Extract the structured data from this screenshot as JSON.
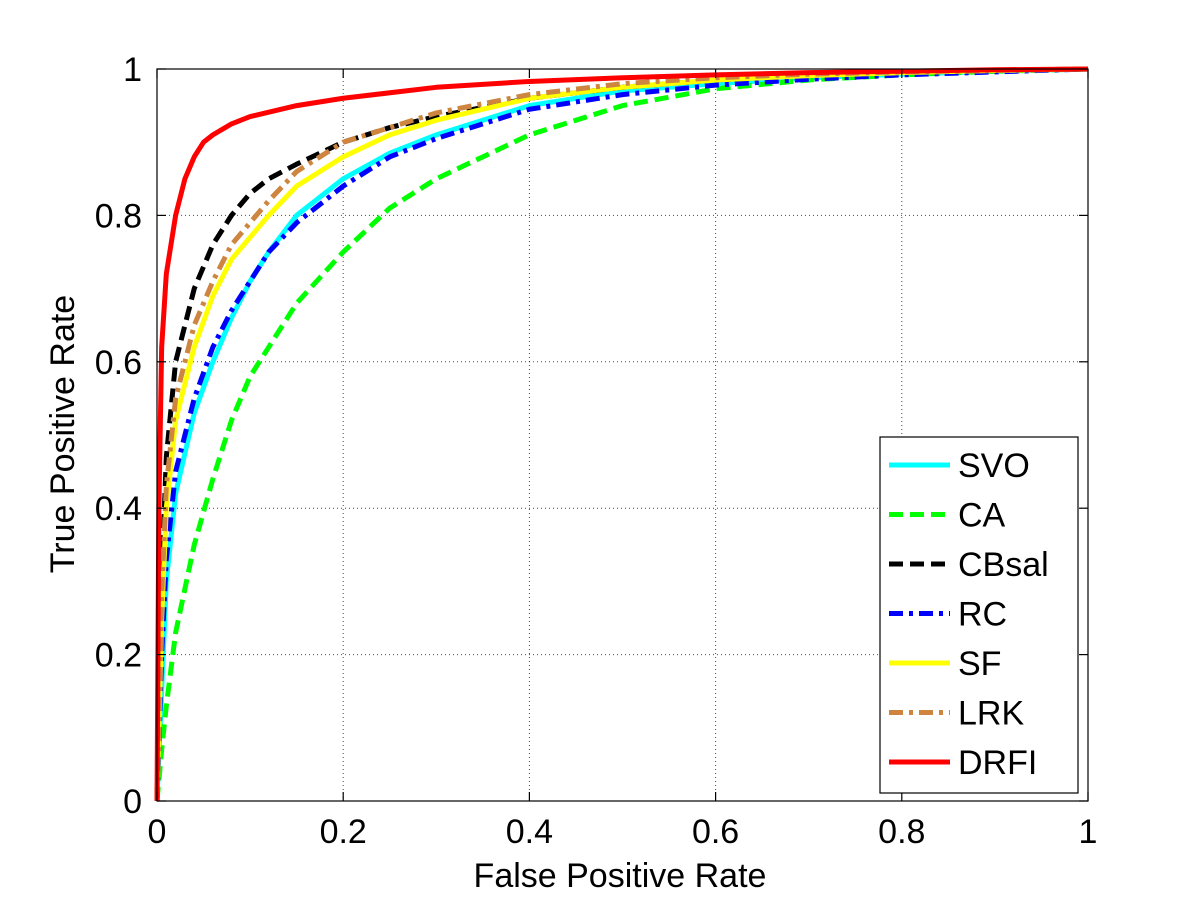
{
  "chart_data": {
    "type": "line",
    "title": "",
    "xlabel": "False Positive Rate",
    "ylabel": "True Positive Rate",
    "xlim": [
      0,
      1
    ],
    "ylim": [
      0,
      1
    ],
    "grid": true,
    "legend_position": "bottom-right",
    "xticks": [
      "0",
      "0.2",
      "0.4",
      "0.6",
      "0.8",
      "1"
    ],
    "yticks": [
      "0",
      "0.2",
      "0.4",
      "0.6",
      "0.8",
      "1"
    ],
    "series": [
      {
        "name": "SVO",
        "color": "#00FFFF",
        "style": "solid",
        "x": [
          0,
          0.005,
          0.01,
          0.02,
          0.04,
          0.06,
          0.08,
          0.1,
          0.12,
          0.15,
          0.2,
          0.25,
          0.3,
          0.4,
          0.5,
          0.6,
          0.7,
          0.8,
          0.9,
          1
        ],
        "y": [
          0,
          0.15,
          0.3,
          0.42,
          0.53,
          0.6,
          0.66,
          0.71,
          0.75,
          0.8,
          0.85,
          0.885,
          0.91,
          0.95,
          0.97,
          0.98,
          0.988,
          0.993,
          0.997,
          1
        ]
      },
      {
        "name": "CA",
        "color": "#00FF00",
        "style": "dashed",
        "x": [
          0,
          0.005,
          0.01,
          0.02,
          0.04,
          0.06,
          0.08,
          0.1,
          0.12,
          0.15,
          0.2,
          0.25,
          0.3,
          0.4,
          0.5,
          0.6,
          0.7,
          0.8,
          0.9,
          1
        ],
        "y": [
          0,
          0.07,
          0.13,
          0.23,
          0.35,
          0.44,
          0.52,
          0.58,
          0.62,
          0.68,
          0.75,
          0.81,
          0.85,
          0.91,
          0.95,
          0.973,
          0.985,
          0.992,
          0.997,
          1
        ]
      },
      {
        "name": "CBsal",
        "color": "#000000",
        "style": "dashed",
        "x": [
          0,
          0.005,
          0.01,
          0.02,
          0.04,
          0.06,
          0.08,
          0.1,
          0.12,
          0.15,
          0.2,
          0.25,
          0.3,
          0.4,
          0.5,
          0.6,
          0.7,
          0.8,
          0.9,
          1
        ],
        "y": [
          0,
          0.3,
          0.47,
          0.6,
          0.7,
          0.76,
          0.8,
          0.83,
          0.85,
          0.87,
          0.9,
          0.92,
          0.935,
          0.96,
          0.975,
          0.985,
          0.992,
          0.995,
          0.998,
          1
        ]
      },
      {
        "name": "RC",
        "color": "#0000FF",
        "style": "dashdot",
        "x": [
          0,
          0.005,
          0.01,
          0.02,
          0.04,
          0.06,
          0.08,
          0.1,
          0.12,
          0.15,
          0.2,
          0.25,
          0.3,
          0.4,
          0.5,
          0.6,
          0.7,
          0.8,
          0.9,
          1
        ],
        "y": [
          0,
          0.2,
          0.33,
          0.45,
          0.55,
          0.62,
          0.67,
          0.71,
          0.75,
          0.79,
          0.84,
          0.88,
          0.905,
          0.945,
          0.965,
          0.978,
          0.986,
          0.992,
          0.996,
          1
        ]
      },
      {
        "name": "SF",
        "color": "#FFFF00",
        "style": "solid",
        "x": [
          0,
          0.005,
          0.01,
          0.02,
          0.04,
          0.06,
          0.08,
          0.1,
          0.12,
          0.15,
          0.2,
          0.25,
          0.3,
          0.4,
          0.5,
          0.6,
          0.7,
          0.8,
          0.9,
          1
        ],
        "y": [
          0,
          0.25,
          0.4,
          0.52,
          0.62,
          0.69,
          0.74,
          0.77,
          0.8,
          0.84,
          0.88,
          0.91,
          0.93,
          0.96,
          0.975,
          0.985,
          0.991,
          0.995,
          0.998,
          1
        ]
      },
      {
        "name": "LRK",
        "color": "#CD853F",
        "style": "dashdot",
        "x": [
          0,
          0.005,
          0.01,
          0.02,
          0.04,
          0.06,
          0.08,
          0.1,
          0.12,
          0.15,
          0.2,
          0.25,
          0.3,
          0.4,
          0.5,
          0.6,
          0.7,
          0.8,
          0.9,
          1
        ],
        "y": [
          0,
          0.28,
          0.43,
          0.55,
          0.65,
          0.71,
          0.76,
          0.79,
          0.82,
          0.86,
          0.9,
          0.92,
          0.94,
          0.965,
          0.98,
          0.988,
          0.993,
          0.996,
          0.998,
          1
        ]
      },
      {
        "name": "DRFI",
        "color": "#FF0000",
        "style": "solid",
        "x": [
          0,
          0.002,
          0.005,
          0.01,
          0.02,
          0.03,
          0.04,
          0.05,
          0.06,
          0.08,
          0.1,
          0.15,
          0.2,
          0.3,
          0.4,
          0.5,
          0.6,
          0.7,
          0.8,
          0.9,
          1
        ],
        "y": [
          0,
          0.4,
          0.62,
          0.72,
          0.8,
          0.85,
          0.88,
          0.9,
          0.91,
          0.925,
          0.935,
          0.95,
          0.96,
          0.975,
          0.983,
          0.988,
          0.992,
          0.995,
          0.997,
          0.999,
          1
        ]
      }
    ]
  }
}
